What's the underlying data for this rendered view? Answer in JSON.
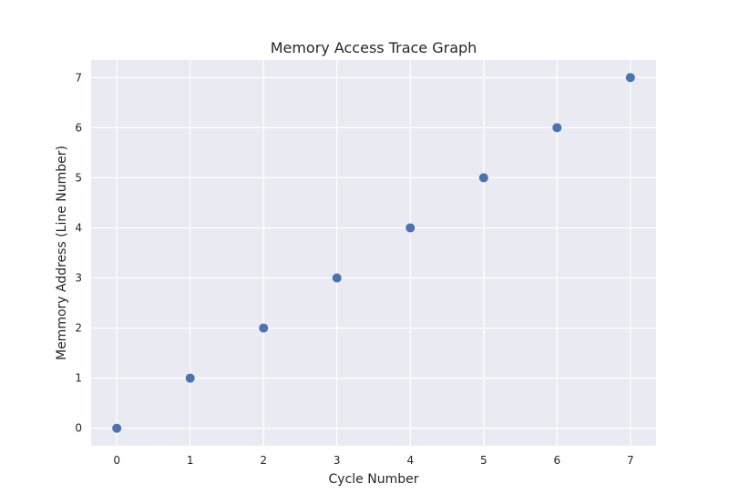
{
  "chart_data": {
    "type": "scatter",
    "title": "Memory Access Trace Graph",
    "xlabel": "Cycle Number",
    "ylabel": "Memmory Address (Line Number)",
    "x": [
      0,
      1,
      2,
      3,
      4,
      5,
      6,
      7
    ],
    "y": [
      0,
      1,
      2,
      3,
      4,
      5,
      6,
      7
    ],
    "xlim": [
      -0.35,
      7.35
    ],
    "ylim": [
      -0.35,
      7.35
    ],
    "xticks": [
      0,
      1,
      2,
      3,
      4,
      5,
      6,
      7
    ],
    "yticks": [
      0,
      1,
      2,
      3,
      4,
      5,
      6,
      7
    ],
    "grid": true,
    "legend": "none",
    "colors": {
      "point": "#4c72b0",
      "plot_background": "#eaeaf2",
      "grid": "#ffffff",
      "text": "#262626"
    }
  }
}
